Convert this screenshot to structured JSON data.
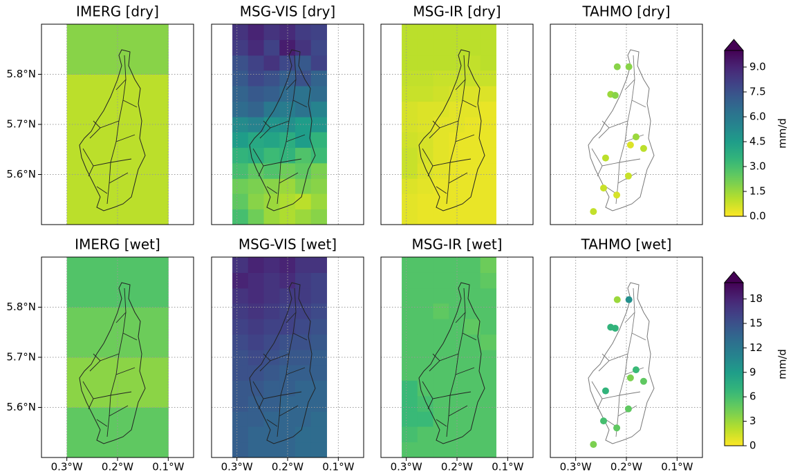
{
  "shared_axes": {
    "xlim": [
      -0.35,
      -0.05
    ],
    "ylim": [
      5.5,
      5.9
    ],
    "xticks": [
      {
        "value": -0.3,
        "label": "0.3°W"
      },
      {
        "value": -0.2,
        "label": "0.2°W"
      },
      {
        "value": -0.1,
        "label": "0.1°W"
      }
    ],
    "yticks": [
      {
        "value": 5.6,
        "label": "5.6°N"
      },
      {
        "value": 5.7,
        "label": "5.7°N"
      },
      {
        "value": 5.8,
        "label": "5.8°N"
      }
    ],
    "grid": true
  },
  "colorbars": [
    {
      "label": "mm/d",
      "lim": [
        0,
        10
      ],
      "extend": "max",
      "ticks": [
        {
          "value": 0,
          "label": "0.0"
        },
        {
          "value": 1.5,
          "label": "1.5"
        },
        {
          "value": 3,
          "label": "3.0"
        },
        {
          "value": 4.5,
          "label": "4.5"
        },
        {
          "value": 6,
          "label": "6.0"
        },
        {
          "value": 7.5,
          "label": "7.5"
        },
        {
          "value": 9,
          "label": "9.0"
        }
      ]
    },
    {
      "label": "mm/d",
      "lim": [
        0,
        20
      ],
      "extend": "max",
      "ticks": [
        0,
        3,
        6,
        9,
        12,
        15,
        18
      ]
    }
  ],
  "chart_data": [
    {
      "type": "heatmap",
      "title": "IMERG [dry]",
      "x_edges": [
        -0.3,
        -0.2,
        -0.1
      ],
      "y_edges": [
        5.5,
        5.6,
        5.7,
        5.8,
        5.9
      ],
      "z": [
        [
          1.0,
          1.0
        ],
        [
          1.0,
          1.0
        ],
        [
          1.0,
          1.0
        ],
        [
          1.8,
          1.8
        ]
      ]
    },
    {
      "type": "heatmap",
      "title": "MSG-VIS [dry]",
      "x_edges": [
        -0.309,
        -0.278,
        -0.247,
        -0.216,
        -0.185,
        -0.154,
        -0.123
      ],
      "y_edges": [
        5.5,
        5.531,
        5.562,
        5.592,
        5.623,
        5.654,
        5.685,
        5.715,
        5.746,
        5.777,
        5.808,
        5.838,
        5.869,
        5.9
      ],
      "z": [
        [
          3.0,
          2.2,
          1.5,
          1.2,
          1.5,
          1.8
        ],
        [
          2.5,
          1.8,
          1.5,
          1.2,
          1.0,
          1.5
        ],
        [
          2.2,
          2.0,
          1.8,
          1.5,
          2.0,
          1.8
        ],
        [
          3.0,
          2.5,
          2.8,
          2.2,
          2.5,
          2.0
        ],
        [
          3.5,
          3.8,
          3.2,
          3.5,
          2.8,
          3.2
        ],
        [
          4.5,
          4.0,
          4.2,
          3.8,
          4.5,
          3.5
        ],
        [
          5.2,
          5.5,
          4.8,
          5.0,
          4.5,
          4.8
        ],
        [
          6.5,
          6.8,
          6.0,
          5.8,
          6.2,
          5.5
        ],
        [
          6.8,
          7.2,
          7.0,
          6.5,
          6.2,
          6.5
        ],
        [
          7.2,
          7.8,
          7.5,
          7.0,
          7.5,
          6.8
        ],
        [
          7.5,
          8.0,
          8.5,
          7.8,
          7.2,
          8.0
        ],
        [
          8.2,
          8.8,
          8.0,
          9.2,
          8.5,
          7.8
        ],
        [
          8.5,
          9.0,
          8.5,
          8.8,
          8.2,
          8.0
        ]
      ]
    },
    {
      "type": "heatmap",
      "title": "MSG-IR [dry]",
      "x_edges": [
        -0.309,
        -0.278,
        -0.247,
        -0.216,
        -0.185,
        -0.154,
        -0.123
      ],
      "y_edges": [
        5.5,
        5.531,
        5.562,
        5.592,
        5.623,
        5.654,
        5.685,
        5.715,
        5.746,
        5.777,
        5.808,
        5.838,
        5.869,
        5.9
      ],
      "z": [
        [
          0.4,
          0.3,
          0.3,
          0.3,
          0.3,
          0.3
        ],
        [
          0.4,
          0.3,
          0.3,
          0.3,
          0.3,
          0.3
        ],
        [
          0.5,
          0.4,
          0.3,
          0.3,
          0.3,
          0.3
        ],
        [
          0.8,
          0.5,
          0.4,
          0.3,
          0.3,
          0.3
        ],
        [
          0.8,
          0.6,
          0.4,
          0.3,
          0.3,
          0.3
        ],
        [
          0.7,
          0.6,
          0.4,
          0.3,
          0.3,
          0.3
        ],
        [
          0.6,
          0.5,
          0.4,
          0.4,
          0.3,
          0.3
        ],
        [
          0.6,
          0.5,
          0.5,
          0.4,
          0.4,
          0.3
        ],
        [
          0.8,
          0.8,
          0.7,
          0.6,
          0.5,
          0.5
        ],
        [
          0.9,
          0.9,
          0.8,
          0.8,
          0.8,
          0.8
        ],
        [
          1.0,
          1.0,
          1.0,
          1.0,
          0.9,
          1.0
        ],
        [
          1.0,
          1.0,
          1.0,
          1.0,
          1.0,
          1.0
        ],
        [
          1.0,
          1.0,
          1.0,
          1.0,
          1.0,
          1.0
        ]
      ]
    },
    {
      "type": "scatter",
      "title": "TAHMO [dry]",
      "x": [
        -0.218,
        -0.195,
        -0.231,
        -0.222,
        -0.181,
        -0.192,
        -0.166,
        -0.241,
        -0.196,
        -0.245,
        -0.219,
        -0.265
      ],
      "y": [
        5.815,
        5.815,
        5.76,
        5.758,
        5.675,
        5.659,
        5.652,
        5.633,
        5.597,
        5.573,
        5.559,
        5.526
      ],
      "values": [
        1.8,
        1.8,
        1.5,
        1.8,
        1.5,
        0.5,
        1.0,
        1.0,
        0.8,
        0.8,
        0.6,
        0.9
      ]
    },
    {
      "type": "heatmap",
      "title": "IMERG [wet]",
      "x_edges": [
        -0.3,
        -0.2,
        -0.1
      ],
      "y_edges": [
        5.5,
        5.6,
        5.7,
        5.8,
        5.9
      ],
      "z": [
        [
          5.0,
          5.0
        ],
        [
          3.5,
          3.5
        ],
        [
          4.5,
          4.5
        ],
        [
          5.5,
          5.5
        ]
      ]
    },
    {
      "type": "heatmap",
      "title": "MSG-VIS [wet]",
      "x_edges": [
        -0.309,
        -0.278,
        -0.247,
        -0.216,
        -0.185,
        -0.154,
        -0.123
      ],
      "y_edges": [
        5.5,
        5.531,
        5.562,
        5.592,
        5.623,
        5.654,
        5.685,
        5.715,
        5.746,
        5.777,
        5.808,
        5.838,
        5.869,
        5.9
      ],
      "z": [
        [
          14,
          13.5,
          13.5,
          13.5,
          13,
          13
        ],
        [
          14,
          13.5,
          13.5,
          13.5,
          13,
          13
        ],
        [
          14,
          14,
          13.5,
          13.5,
          13.5,
          13
        ],
        [
          14.5,
          14,
          14,
          13.5,
          13.5,
          13.5
        ],
        [
          14.5,
          14.5,
          14,
          14,
          13.5,
          13.5
        ],
        [
          15,
          15,
          14.5,
          14,
          14,
          14
        ],
        [
          15,
          15.5,
          15,
          14.5,
          14.5,
          14
        ],
        [
          15.5,
          16,
          15.5,
          15,
          15,
          14.5
        ],
        [
          16,
          16.5,
          16,
          16,
          15.5,
          15
        ],
        [
          16.5,
          17,
          16.5,
          16,
          16,
          15.5
        ],
        [
          17,
          17.5,
          17,
          16.5,
          16.5,
          16
        ],
        [
          18,
          17.5,
          17,
          17.5,
          16.5,
          16
        ],
        [
          17,
          18,
          17.5,
          18,
          17,
          17
        ]
      ]
    },
    {
      "type": "heatmap",
      "title": "MSG-IR [wet]",
      "x_edges": [
        -0.309,
        -0.278,
        -0.247,
        -0.216,
        -0.185,
        -0.154,
        -0.123
      ],
      "y_edges": [
        5.5,
        5.531,
        5.562,
        5.592,
        5.623,
        5.654,
        5.685,
        5.715,
        5.746,
        5.777,
        5.808,
        5.838,
        5.869,
        5.9
      ],
      "z": [
        [
          5.5,
          5.5,
          5.5,
          5.5,
          5.5,
          5.5
        ],
        [
          6.0,
          5.5,
          5.5,
          5.5,
          5.5,
          5.5
        ],
        [
          6.5,
          6.5,
          5.5,
          5.5,
          5.5,
          5.5
        ],
        [
          6.5,
          6.0,
          5.5,
          5.5,
          5.5,
          5.5
        ],
        [
          6.5,
          5.5,
          5.5,
          5.5,
          5.5,
          5.5
        ],
        [
          5.5,
          5.5,
          5.5,
          5.5,
          5.5,
          5.5
        ],
        [
          5.5,
          5.5,
          5.5,
          5.5,
          5.5,
          5.5
        ],
        [
          5.5,
          5.5,
          5.5,
          5.5,
          5.5,
          5.0
        ],
        [
          5.5,
          5.5,
          5.5,
          5.5,
          5.0,
          5.5
        ],
        [
          5.5,
          5.5,
          5.0,
          5.5,
          5.5,
          5.5
        ],
        [
          5.5,
          5.5,
          5.5,
          5.5,
          5.5,
          5.5
        ],
        [
          5.5,
          5.5,
          5.5,
          5.5,
          5.5,
          5.0
        ],
        [
          5.5,
          5.5,
          5.5,
          5.5,
          5.5,
          4.5
        ]
      ]
    },
    {
      "type": "scatter",
      "title": "TAHMO [wet]",
      "x": [
        -0.218,
        -0.195,
        -0.231,
        -0.222,
        -0.181,
        -0.192,
        -0.166,
        -0.241,
        -0.196,
        -0.245,
        -0.219,
        -0.265
      ],
      "y": [
        5.815,
        5.815,
        5.76,
        5.758,
        5.675,
        5.659,
        5.652,
        5.633,
        5.597,
        5.573,
        5.559,
        5.526
      ],
      "values": [
        3,
        10,
        7,
        7,
        6.5,
        4,
        5,
        7,
        5,
        6,
        5,
        4
      ]
    }
  ]
}
